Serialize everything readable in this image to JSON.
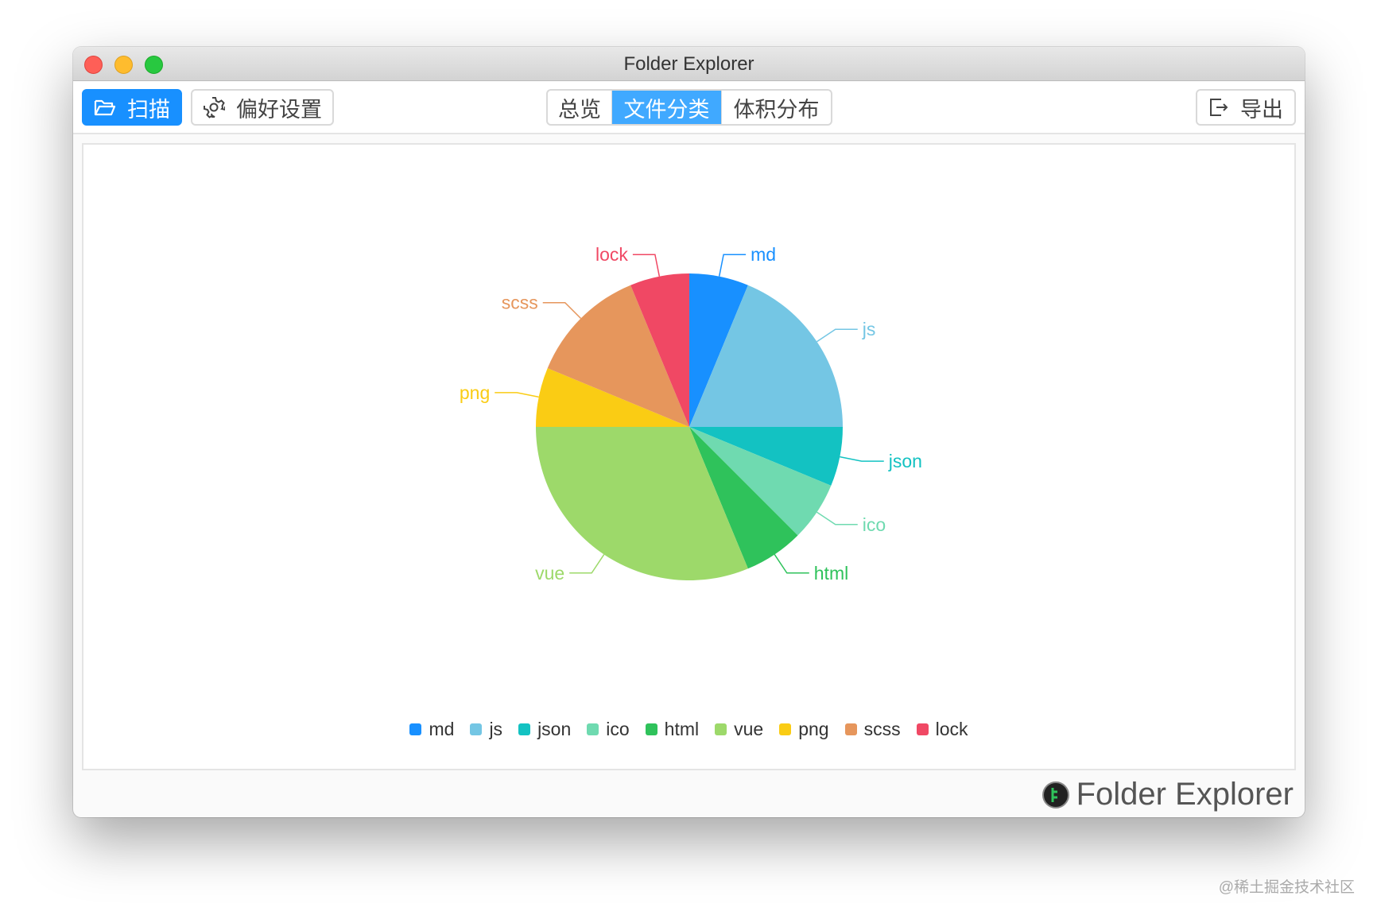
{
  "window": {
    "title": "Folder Explorer"
  },
  "toolbar": {
    "scan_label": "扫描",
    "prefs_label": "偏好设置",
    "export_label": "导出",
    "tabs": [
      {
        "label": "总览",
        "active": false
      },
      {
        "label": "文件分类",
        "active": true
      },
      {
        "label": "体积分布",
        "active": false
      }
    ]
  },
  "footer": {
    "brand": "Folder Explorer"
  },
  "watermark": "@稀土掘金技术社区",
  "colors": {
    "accent": "#1890ff"
  },
  "chart_data": {
    "type": "pie",
    "legend_placement": "bottom",
    "categories": [
      "md",
      "js",
      "json",
      "ico",
      "html",
      "vue",
      "png",
      "scss",
      "lock"
    ],
    "values": [
      1,
      3,
      1,
      1,
      1,
      5,
      1,
      2,
      1
    ],
    "colors": [
      "#1890ff",
      "#74c6e4",
      "#13c2c2",
      "#6fdab0",
      "#2fc25b",
      "#9dd96a",
      "#facc14",
      "#e6965c",
      "#f04864"
    ]
  }
}
